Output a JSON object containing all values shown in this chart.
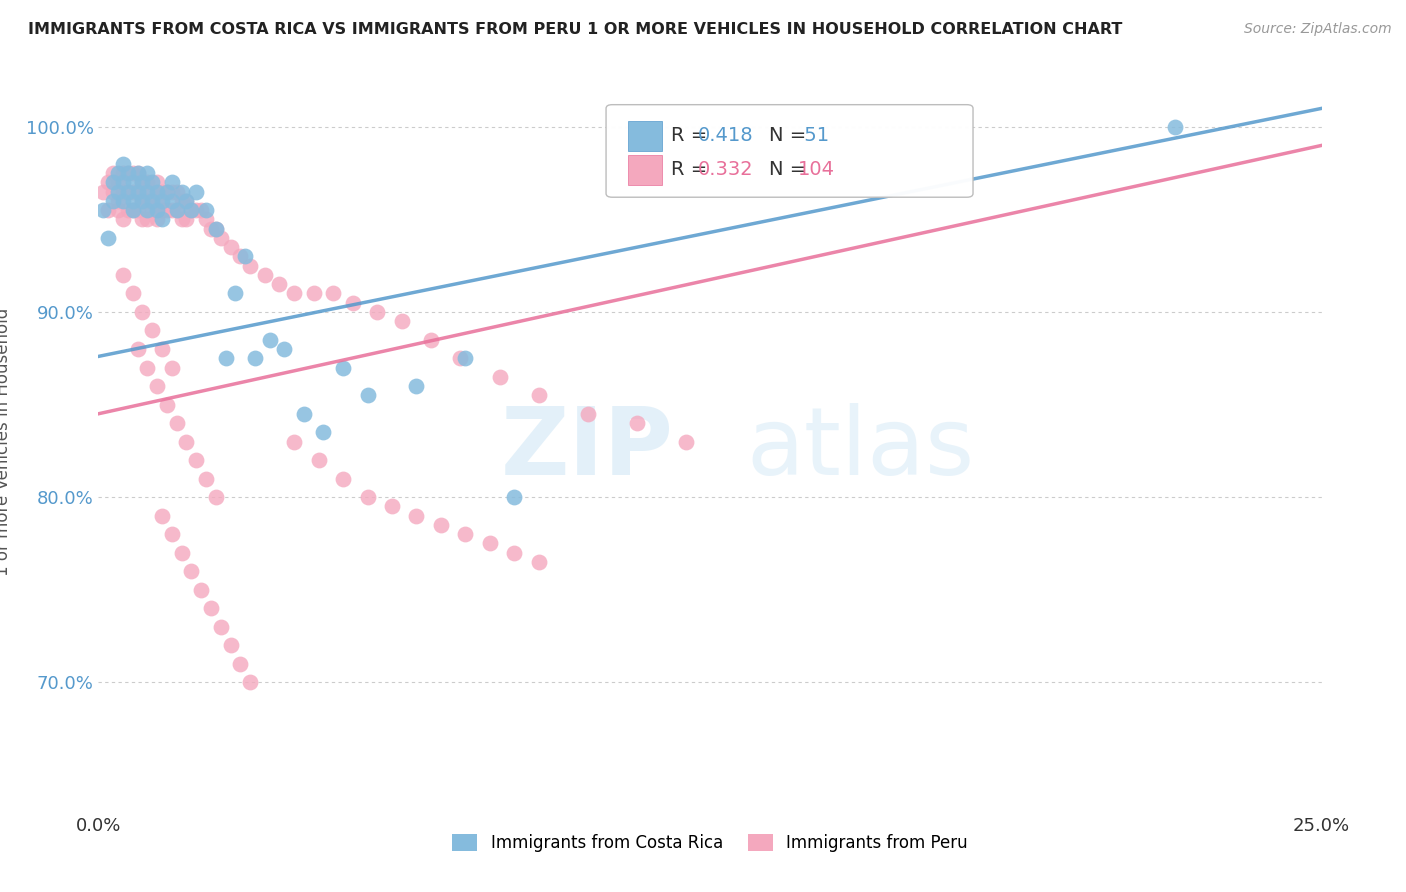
{
  "title": "IMMIGRANTS FROM COSTA RICA VS IMMIGRANTS FROM PERU 1 OR MORE VEHICLES IN HOUSEHOLD CORRELATION CHART",
  "source": "Source: ZipAtlas.com",
  "ylabel": "1 or more Vehicles in Household",
  "xlim": [
    0.0,
    0.25
  ],
  "ylim": [
    0.63,
    1.03
  ],
  "yticks": [
    0.7,
    0.8,
    0.9,
    1.0
  ],
  "ytick_labels": [
    "70.0%",
    "80.0%",
    "90.0%",
    "100.0%"
  ],
  "xticks": [
    0.0,
    0.05,
    0.1,
    0.15,
    0.2,
    0.25
  ],
  "legend_label1": "Immigrants from Costa Rica",
  "legend_label2": "Immigrants from Peru",
  "R1": 0.418,
  "N1": 51,
  "R2": 0.332,
  "N2": 104,
  "color_blue": "#85bbdd",
  "color_pink": "#f4a8be",
  "color_blue_line": "#5599cc",
  "color_pink_line": "#e8709a",
  "background_color": "#ffffff",
  "grid_color": "#cccccc",
  "watermark_zip": "ZIP",
  "watermark_atlas": "atlas",
  "costa_rica_x": [
    0.001,
    0.002,
    0.003,
    0.003,
    0.004,
    0.004,
    0.005,
    0.005,
    0.005,
    0.006,
    0.006,
    0.007,
    0.007,
    0.007,
    0.008,
    0.008,
    0.009,
    0.009,
    0.01,
    0.01,
    0.01,
    0.011,
    0.011,
    0.012,
    0.012,
    0.013,
    0.013,
    0.014,
    0.015,
    0.015,
    0.016,
    0.017,
    0.018,
    0.019,
    0.02,
    0.022,
    0.024,
    0.026,
    0.028,
    0.03,
    0.032,
    0.035,
    0.038,
    0.042,
    0.046,
    0.05,
    0.055,
    0.065,
    0.075,
    0.085,
    0.22
  ],
  "costa_rica_y": [
    0.955,
    0.94,
    0.97,
    0.96,
    0.975,
    0.965,
    0.98,
    0.97,
    0.96,
    0.975,
    0.965,
    0.97,
    0.96,
    0.955,
    0.975,
    0.965,
    0.97,
    0.96,
    0.975,
    0.965,
    0.955,
    0.97,
    0.96,
    0.965,
    0.955,
    0.96,
    0.95,
    0.965,
    0.97,
    0.96,
    0.955,
    0.965,
    0.96,
    0.955,
    0.965,
    0.955,
    0.945,
    0.875,
    0.91,
    0.93,
    0.875,
    0.885,
    0.88,
    0.845,
    0.835,
    0.87,
    0.855,
    0.86,
    0.875,
    0.8,
    1.0
  ],
  "peru_x": [
    0.001,
    0.002,
    0.002,
    0.003,
    0.003,
    0.004,
    0.004,
    0.004,
    0.005,
    0.005,
    0.005,
    0.006,
    0.006,
    0.006,
    0.007,
    0.007,
    0.007,
    0.008,
    0.008,
    0.008,
    0.009,
    0.009,
    0.009,
    0.01,
    0.01,
    0.01,
    0.011,
    0.011,
    0.012,
    0.012,
    0.012,
    0.013,
    0.013,
    0.014,
    0.014,
    0.015,
    0.015,
    0.016,
    0.016,
    0.017,
    0.017,
    0.018,
    0.018,
    0.019,
    0.02,
    0.021,
    0.022,
    0.023,
    0.024,
    0.025,
    0.027,
    0.029,
    0.031,
    0.034,
    0.037,
    0.04,
    0.044,
    0.048,
    0.052,
    0.057,
    0.062,
    0.068,
    0.074,
    0.082,
    0.09,
    0.1,
    0.11,
    0.12,
    0.008,
    0.01,
    0.012,
    0.014,
    0.016,
    0.018,
    0.02,
    0.022,
    0.024,
    0.013,
    0.015,
    0.017,
    0.019,
    0.021,
    0.023,
    0.025,
    0.027,
    0.029,
    0.031,
    0.005,
    0.007,
    0.009,
    0.011,
    0.013,
    0.015,
    0.04,
    0.045,
    0.05,
    0.055,
    0.06,
    0.065,
    0.07,
    0.075,
    0.08,
    0.085,
    0.09
  ],
  "peru_y": [
    0.965,
    0.97,
    0.955,
    0.975,
    0.965,
    0.97,
    0.96,
    0.955,
    0.975,
    0.965,
    0.95,
    0.975,
    0.965,
    0.955,
    0.975,
    0.965,
    0.955,
    0.975,
    0.965,
    0.955,
    0.97,
    0.96,
    0.95,
    0.97,
    0.96,
    0.95,
    0.965,
    0.955,
    0.97,
    0.96,
    0.95,
    0.965,
    0.955,
    0.965,
    0.955,
    0.965,
    0.955,
    0.965,
    0.955,
    0.96,
    0.95,
    0.96,
    0.95,
    0.955,
    0.955,
    0.955,
    0.95,
    0.945,
    0.945,
    0.94,
    0.935,
    0.93,
    0.925,
    0.92,
    0.915,
    0.91,
    0.91,
    0.91,
    0.905,
    0.9,
    0.895,
    0.885,
    0.875,
    0.865,
    0.855,
    0.845,
    0.84,
    0.83,
    0.88,
    0.87,
    0.86,
    0.85,
    0.84,
    0.83,
    0.82,
    0.81,
    0.8,
    0.79,
    0.78,
    0.77,
    0.76,
    0.75,
    0.74,
    0.73,
    0.72,
    0.71,
    0.7,
    0.92,
    0.91,
    0.9,
    0.89,
    0.88,
    0.87,
    0.83,
    0.82,
    0.81,
    0.8,
    0.795,
    0.79,
    0.785,
    0.78,
    0.775,
    0.77,
    0.765
  ]
}
